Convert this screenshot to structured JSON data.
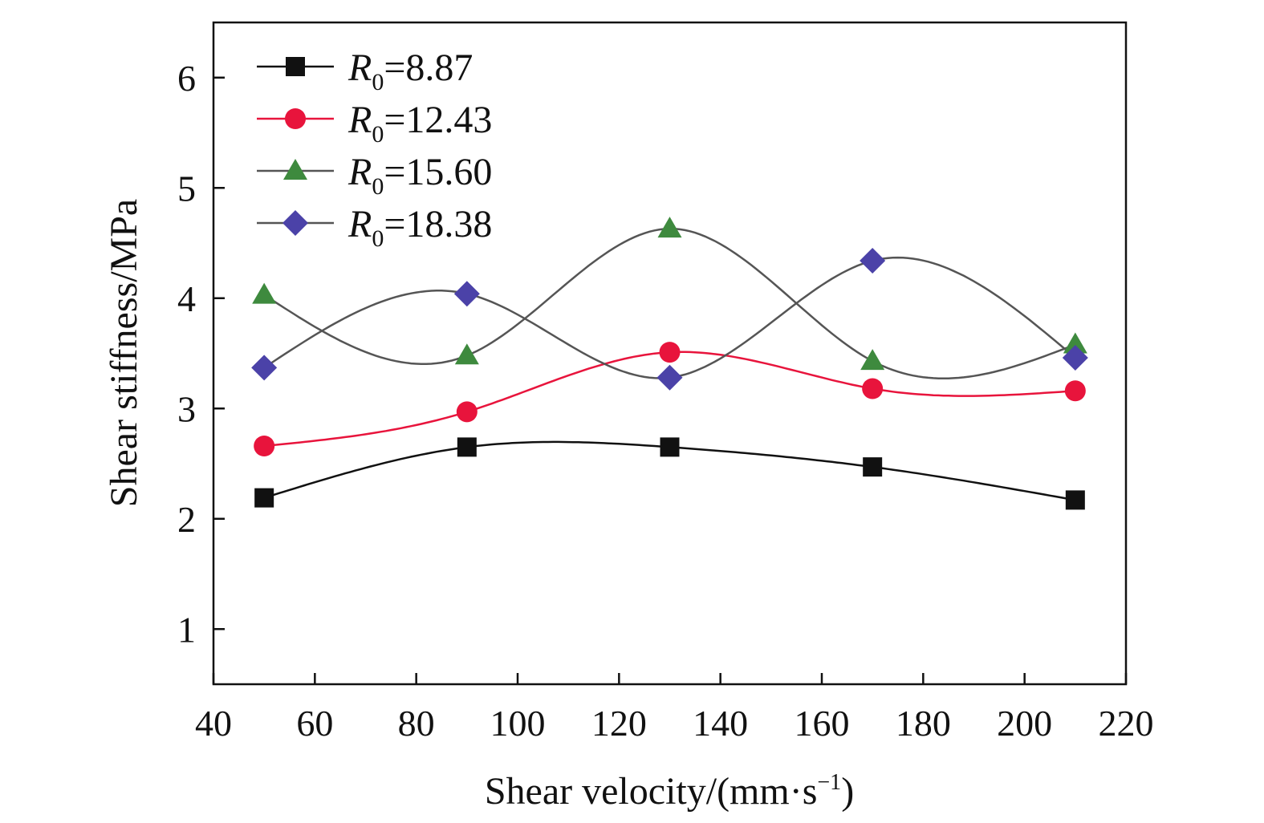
{
  "chart_data": {
    "type": "scatter",
    "xlabel": "Shear velocity/(mm·s",
    "xlabel_sup": "−1",
    "xlabel_end": ")",
    "ylabel": "Shear stiffness/MPa",
    "xlim": [
      40,
      220
    ],
    "ylim": [
      0.5,
      6.5
    ],
    "xticks": [
      40,
      60,
      80,
      100,
      120,
      140,
      160,
      180,
      200,
      220
    ],
    "yticks": [
      1,
      2,
      3,
      4,
      5,
      6
    ],
    "grid": false,
    "legend_position": "top-left",
    "fitted_curves": true,
    "x": [
      50,
      90,
      130,
      170,
      210
    ],
    "series": [
      {
        "legend_prefix": "R",
        "legend_sub": "0",
        "legend_value": "=8.87",
        "marker": "square",
        "color": "#111111",
        "line_color": "#111111",
        "values": [
          2.19,
          2.65,
          2.65,
          2.47,
          2.17
        ]
      },
      {
        "legend_prefix": "R",
        "legend_sub": "0",
        "legend_value": "=12.43",
        "marker": "circle",
        "color": "#e8143c",
        "line_color": "#e8143c",
        "values": [
          2.66,
          2.97,
          3.51,
          3.18,
          3.16
        ]
      },
      {
        "legend_prefix": "R",
        "legend_sub": "0",
        "legend_value": "=15.60",
        "marker": "triangle",
        "color": "#3e8a3e",
        "line_color": "#555555",
        "values": [
          4.03,
          3.48,
          4.63,
          3.43,
          3.58
        ]
      },
      {
        "legend_prefix": "R",
        "legend_sub": "0",
        "legend_value": "=18.38",
        "marker": "diamond",
        "color": "#4b42a8",
        "line_color": "#555555",
        "values": [
          3.37,
          4.04,
          3.28,
          4.34,
          3.46
        ]
      }
    ]
  }
}
